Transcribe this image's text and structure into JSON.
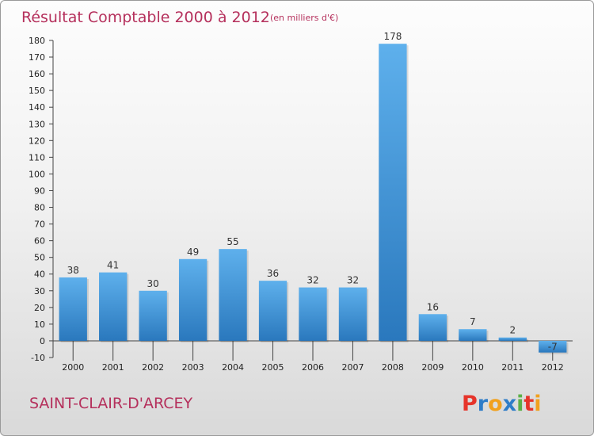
{
  "title": "Résultat Comptable 2000 à 2012",
  "subtitle": "(en milliers d'€)",
  "commune": "SAINT-CLAIR-D'ARCEY",
  "logo": {
    "letters": [
      "P",
      "r",
      "o",
      "x",
      "i",
      "t",
      "i"
    ],
    "colors": [
      "#e6342a",
      "#2e7dc8",
      "#f1a11e",
      "#2e7dc8",
      "#5bb046",
      "#e6342a",
      "#f1a11e"
    ]
  },
  "chart_data": {
    "type": "bar",
    "title": "Résultat Comptable 2000 à 2012",
    "xlabel": "",
    "ylabel": "en milliers d'€",
    "ylim": [
      -10,
      180
    ],
    "yticks": [
      -10,
      0,
      10,
      20,
      30,
      40,
      50,
      60,
      70,
      80,
      90,
      100,
      110,
      120,
      130,
      140,
      150,
      160,
      170,
      180
    ],
    "categories": [
      "2000",
      "2001",
      "2002",
      "2003",
      "2004",
      "2005",
      "2006",
      "2007",
      "2008",
      "2009",
      "2010",
      "2011",
      "2012"
    ],
    "values": [
      38,
      41,
      30,
      49,
      55,
      36,
      32,
      32,
      178,
      16,
      7,
      2,
      -7
    ],
    "bar_color": "#3d93d8",
    "grid": false,
    "legend": "none"
  }
}
